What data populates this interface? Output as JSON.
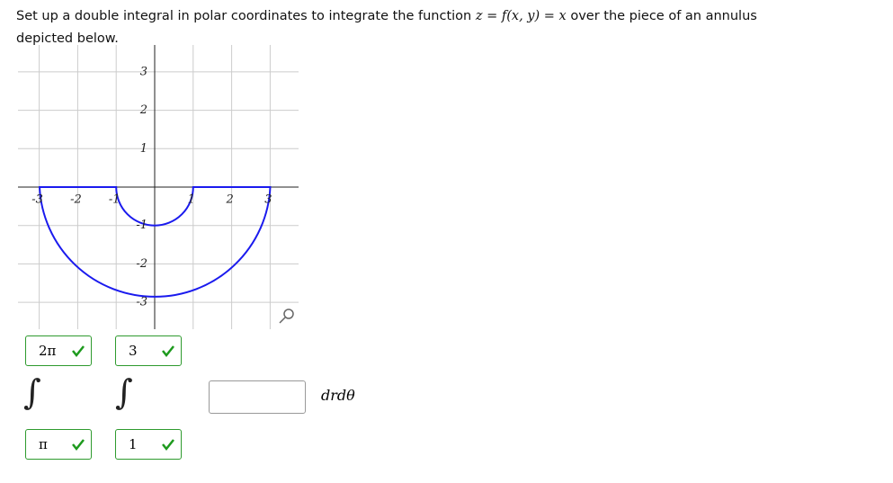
{
  "question": {
    "parts": [
      "Set up a double integral in polar coordinates to integrate the function ",
      "z",
      " = ",
      "f(x, y)",
      " = ",
      "x",
      " over the piece of an annulus depicted below."
    ]
  },
  "graph": {
    "x_tick_labels": [
      "-3",
      "-2",
      "-1",
      "1",
      "2",
      "3"
    ],
    "y_tick_labels": [
      "3",
      "2",
      "1",
      "-1",
      "-2",
      "-3"
    ]
  },
  "integral": {
    "outer_upper": "2π",
    "outer_lower": "π",
    "inner_upper": "3",
    "inner_lower": "1",
    "differential": "drdθ"
  }
}
